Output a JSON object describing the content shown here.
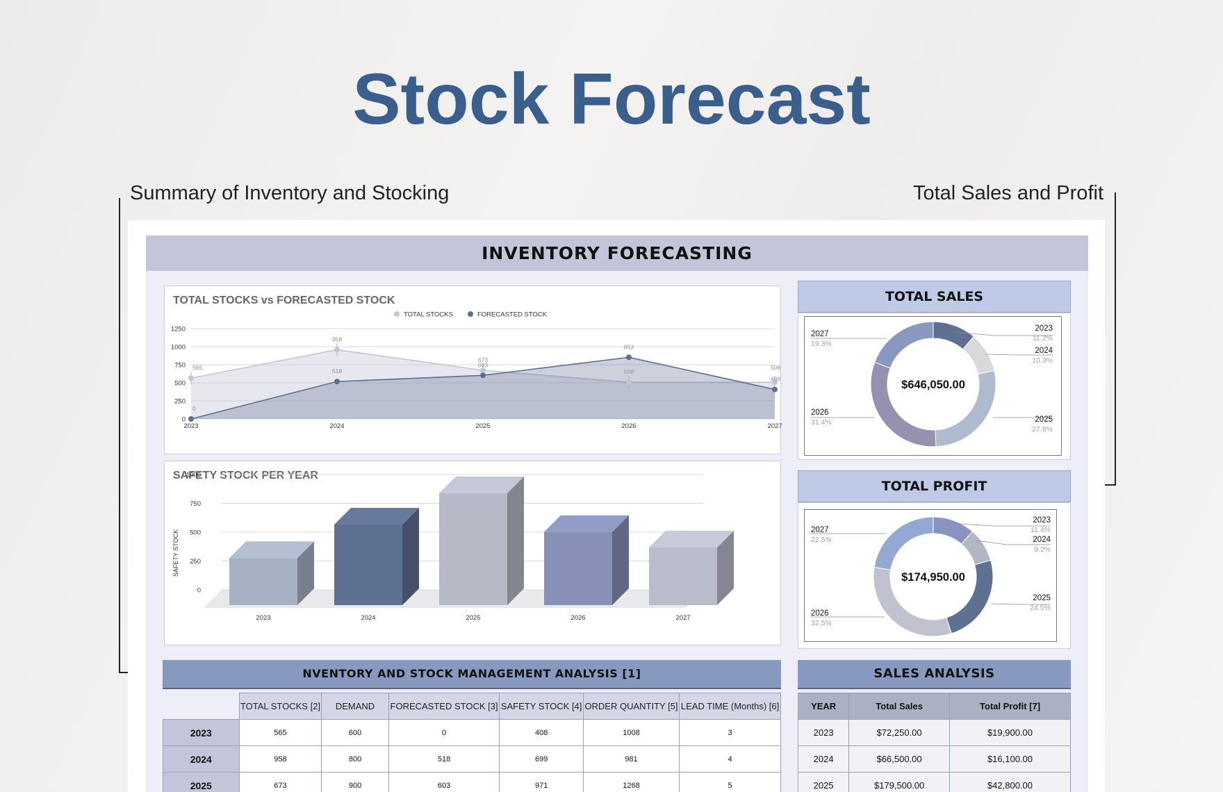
{
  "page": {
    "title": "Stock Forecast",
    "caption_left": "Summary of Inventory and Stocking",
    "caption_right": "Total Sales and Profit"
  },
  "dashboard": {
    "header": "INVENTORY FORECASTING"
  },
  "colors": {
    "title_blue": "#3b5f8c",
    "total_stocks": "#c3c4d6",
    "forecasted_stock": "#5f6f92",
    "header_band": "#c3c6d8",
    "side_header": "#bfcbe6",
    "section_header": "#8899bf"
  },
  "line_chart": {
    "title": "TOTAL STOCKS vs FORECASTED STOCK",
    "legend": [
      "TOTAL STOCKS",
      "FORECASTED STOCK"
    ],
    "y_ticks": [
      "0",
      "250",
      "500",
      "750",
      "1000",
      "1250"
    ],
    "x_ticks": [
      "2023",
      "2024",
      "2025",
      "2026",
      "2027"
    ]
  },
  "bar_chart": {
    "title": "SAFETY STOCK PER YEAR",
    "ylabel": "SAFETY STOCK",
    "y_ticks": [
      "0",
      "250",
      "500",
      "750",
      "1000"
    ],
    "x_ticks": [
      "2023",
      "2024",
      "2025",
      "2026",
      "2027"
    ],
    "bar_colors": [
      "#a7b1c4",
      "#5f7192",
      "#b6b9c6",
      "#8890b8",
      "#b8bccb"
    ]
  },
  "chart_data": [
    {
      "type": "area",
      "title": "TOTAL STOCKS vs FORECASTED STOCK",
      "categories": [
        "2023",
        "2024",
        "2025",
        "2026",
        "2027"
      ],
      "series": [
        {
          "name": "TOTAL STOCKS",
          "values": [
            565,
            958,
            673,
            508,
            508
          ]
        },
        {
          "name": "FORECASTED STOCK",
          "values": [
            0,
            518,
            603,
            853,
            408
          ]
        }
      ],
      "ylim": [
        0,
        1250
      ],
      "grid": true,
      "legend_position": "top"
    },
    {
      "type": "bar",
      "title": "SAFETY STOCK PER YEAR",
      "categories": [
        "2023",
        "2024",
        "2025",
        "2026",
        "2027"
      ],
      "values": [
        408,
        699,
        971,
        634,
        500
      ],
      "ylabel": "SAFETY STOCK",
      "ylim": [
        0,
        1000
      ]
    },
    {
      "type": "pie",
      "title": "TOTAL SALES",
      "center_label": "$646,050.00",
      "labels": [
        "2023",
        "2024",
        "2025",
        "2026",
        "2027"
      ],
      "percent_labels": [
        "11.2%",
        "10.3%",
        "27.8%",
        "31.4%",
        "19.3%"
      ],
      "values": [
        11.2,
        10.3,
        27.8,
        31.4,
        19.3
      ],
      "colors": [
        "#5f6f92",
        "#d9d9dc",
        "#b1bbd0",
        "#9492b0",
        "#8898be"
      ]
    },
    {
      "type": "pie",
      "title": "TOTAL PROFIT",
      "center_label": "$174,950.00",
      "labels": [
        "2023",
        "2024",
        "2025",
        "2026",
        "2027"
      ],
      "percent_labels": [
        "11.4%",
        "9.2%",
        "24.5%",
        "32.5%",
        "22.5%"
      ],
      "values": [
        11.4,
        9.2,
        24.5,
        32.5,
        22.5
      ],
      "colors": [
        "#8a93bf",
        "#b0b6c4",
        "#5f7192",
        "#c0c3cf",
        "#93a8d2"
      ]
    }
  ],
  "sales_donut": {
    "title": "TOTAL SALES",
    "center": "$646,050.00",
    "labels": [
      "2023",
      "2024",
      "2025",
      "2026",
      "2027"
    ],
    "pcts": [
      "11.2%",
      "10.3%",
      "27.8%",
      "31.4%",
      "19.3%"
    ]
  },
  "profit_donut": {
    "title": "TOTAL PROFIT",
    "center": "$174,950.00",
    "labels": [
      "2023",
      "2024",
      "2025",
      "2026",
      "2027"
    ],
    "pcts": [
      "11.4%",
      "9.2%",
      "24.5%",
      "32.5%",
      "22.5%"
    ]
  },
  "inventory_table": {
    "title": "NVENTORY AND STOCK MANAGEMENT ANALYSIS [1]",
    "columns": [
      "TOTAL STOCKS [2]",
      "DEMAND",
      "FORECASTED STOCK [3]",
      "SAFETY STOCK [4]",
      "ORDER QUANTITY [5]",
      "LEAD TIME (Months) [6]"
    ],
    "rows": [
      {
        "year": "2023",
        "cells": [
          "565",
          "600",
          "0",
          "408",
          "1008",
          "3"
        ]
      },
      {
        "year": "2024",
        "cells": [
          "958",
          "800",
          "518",
          "699",
          "981",
          "4"
        ]
      },
      {
        "year": "2025",
        "cells": [
          "673",
          "900",
          "603",
          "971",
          "1268",
          "5"
        ]
      }
    ]
  },
  "sales_table": {
    "title": "SALES ANALYSIS",
    "columns": [
      "YEAR",
      "Total Sales",
      "Total Profit [7]"
    ],
    "rows": [
      [
        "2023",
        "$72,250.00",
        "$19,900.00"
      ],
      [
        "2024",
        "$66,500.00",
        "$16,100.00"
      ],
      [
        "2025",
        "$179,500.00",
        "$42,800.00"
      ]
    ]
  }
}
